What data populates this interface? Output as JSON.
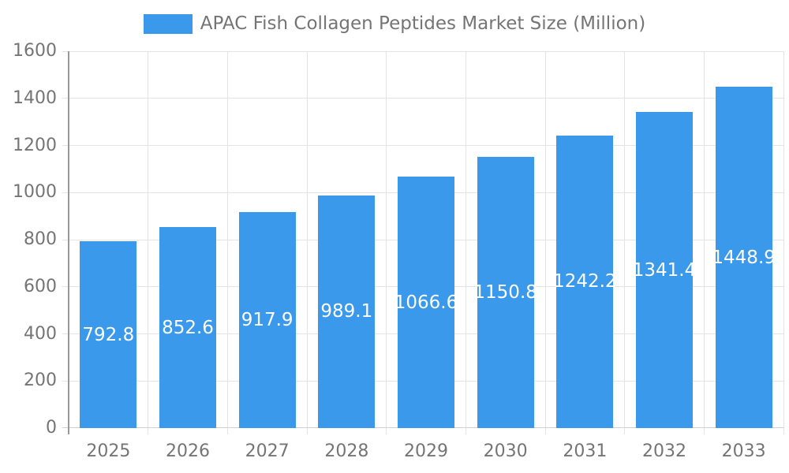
{
  "legend": {
    "label": "APAC Fish Collagen Peptides Market Size (Million)"
  },
  "chart_data": {
    "type": "bar",
    "title": "APAC Fish Collagen Peptides Market Size (Million)",
    "categories": [
      "2025",
      "2026",
      "2027",
      "2028",
      "2029",
      "2030",
      "2031",
      "2032",
      "2033"
    ],
    "values": [
      792.8,
      852.6,
      917.9,
      989.1,
      1066.6,
      1150.8,
      1242.2,
      1341.4,
      1448.9
    ],
    "xlabel": "",
    "ylabel": "",
    "ylim": [
      0,
      1600
    ],
    "ytick_step": 200,
    "yticks": [
      0,
      200,
      400,
      600,
      800,
      1000,
      1200,
      1400,
      1600
    ],
    "grid": true,
    "legend_position": "top",
    "value_labels": "inside-center",
    "colors": {
      "bar": "#3B99EC",
      "value_label": "#FFFFFF",
      "axis_label": "#757575",
      "grid_line": "#E4E4E4",
      "tick_line": "#D2D2D2",
      "axis_line": "#999999",
      "background": "#FFFFFF"
    }
  }
}
